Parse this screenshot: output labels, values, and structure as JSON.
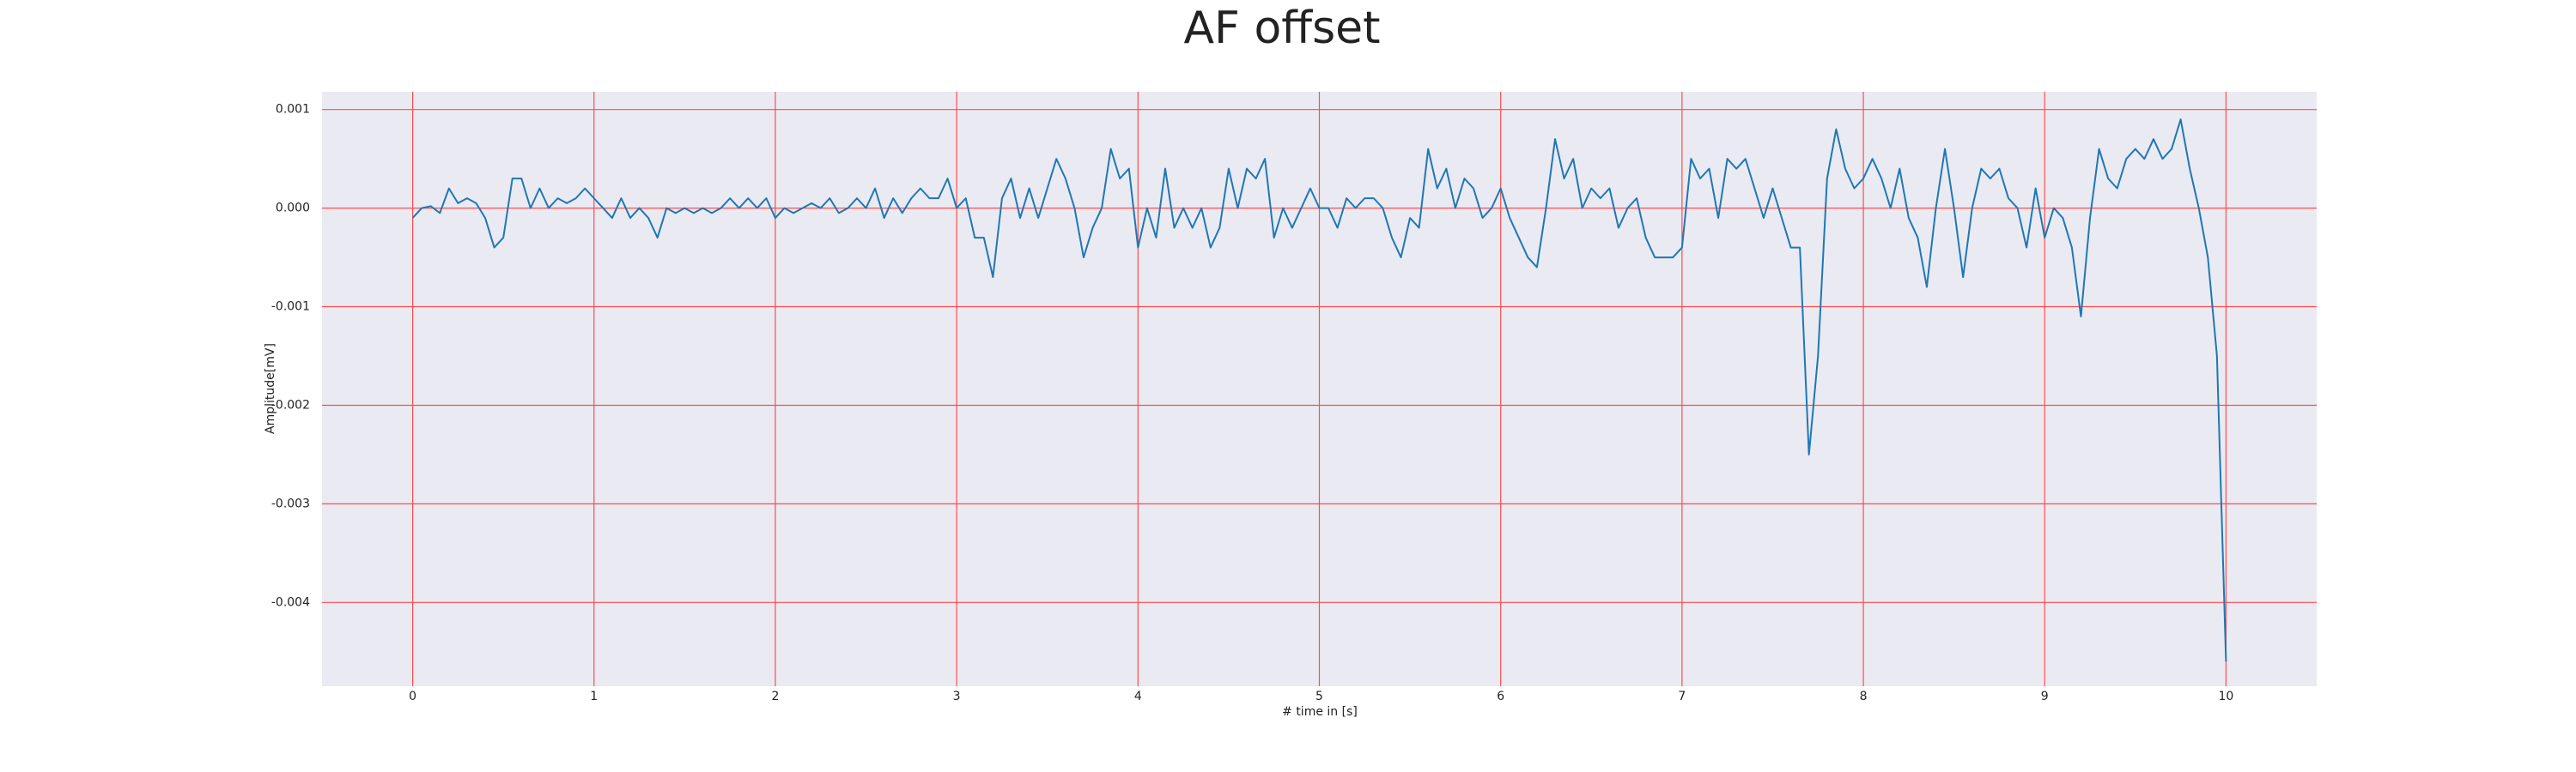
{
  "chart_data": {
    "type": "line",
    "title": "AF offset",
    "xlabel": "# time in [s]",
    "ylabel": "Amplitude[mV]",
    "x": [
      0,
      0.05,
      0.1,
      0.15,
      0.2,
      0.25,
      0.3,
      0.35,
      0.4,
      0.45,
      0.5,
      0.55,
      0.6,
      0.65,
      0.7,
      0.75,
      0.8,
      0.85,
      0.9,
      0.95,
      1,
      1.05,
      1.1,
      1.15,
      1.2,
      1.25,
      1.3,
      1.35,
      1.4,
      1.45,
      1.5,
      1.55,
      1.6,
      1.65,
      1.7,
      1.75,
      1.8,
      1.85,
      1.9,
      1.95,
      2,
      2.05,
      2.1,
      2.15,
      2.2,
      2.25,
      2.3,
      2.35,
      2.4,
      2.45,
      2.5,
      2.55,
      2.6,
      2.65,
      2.7,
      2.75,
      2.8,
      2.85,
      2.9,
      2.95,
      3,
      3.05,
      3.1,
      3.15,
      3.2,
      3.25,
      3.3,
      3.35,
      3.4,
      3.45,
      3.5,
      3.55,
      3.6,
      3.65,
      3.7,
      3.75,
      3.8,
      3.85,
      3.9,
      3.95,
      4,
      4.05,
      4.1,
      4.15,
      4.2,
      4.25,
      4.3,
      4.35,
      4.4,
      4.45,
      4.5,
      4.55,
      4.6,
      4.65,
      4.7,
      4.75,
      4.8,
      4.85,
      4.9,
      4.95,
      5,
      5.05,
      5.1,
      5.15,
      5.2,
      5.25,
      5.3,
      5.35,
      5.4,
      5.45,
      5.5,
      5.55,
      5.6,
      5.65,
      5.7,
      5.75,
      5.8,
      5.85,
      5.9,
      5.95,
      6,
      6.05,
      6.1,
      6.15,
      6.2,
      6.25,
      6.3,
      6.35,
      6.4,
      6.45,
      6.5,
      6.55,
      6.6,
      6.65,
      6.7,
      6.75,
      6.8,
      6.85,
      6.9,
      6.95,
      7,
      7.05,
      7.1,
      7.15,
      7.2,
      7.25,
      7.3,
      7.35,
      7.4,
      7.45,
      7.5,
      7.55,
      7.6,
      7.65,
      7.7,
      7.75,
      7.8,
      7.85,
      7.9,
      7.95,
      8,
      8.05,
      8.1,
      8.15,
      8.2,
      8.25,
      8.3,
      8.35,
      8.4,
      8.45,
      8.5,
      8.55,
      8.6,
      8.65,
      8.7,
      8.75,
      8.8,
      8.85,
      8.9,
      8.95,
      9,
      9.05,
      9.1,
      9.15,
      9.2,
      9.25,
      9.3,
      9.35,
      9.4,
      9.45,
      9.5,
      9.55,
      9.6,
      9.65,
      9.7,
      9.75,
      9.8,
      9.85,
      9.9,
      9.95,
      10
    ],
    "series": [
      {
        "color": "#1f77b4",
        "values": [
          -0.0001,
          0,
          2e-05,
          -5e-05,
          0.0002,
          5e-05,
          0.0001,
          5e-05,
          -0.0001,
          -0.0004,
          -0.0003,
          0.0003,
          0.0003,
          0,
          0.0002,
          0,
          0.0001,
          5e-05,
          0.0001,
          0.0002,
          0.0001,
          0,
          -0.0001,
          0.0001,
          -0.0001,
          0,
          -0.0001,
          -0.0003,
          0,
          -5e-05,
          0,
          -5e-05,
          0,
          -5e-05,
          0,
          0.0001,
          0,
          0.0001,
          0,
          0.0001,
          -0.0001,
          0,
          -5e-05,
          0,
          5e-05,
          0,
          0.0001,
          -5e-05,
          0,
          0.0001,
          0,
          0.0002,
          -0.0001,
          0.0001,
          -5e-05,
          0.0001,
          0.0002,
          0.0001,
          0.0001,
          0.0003,
          0,
          0.0001,
          -0.0003,
          -0.0003,
          -0.0007,
          0.0001,
          0.0003,
          -0.0001,
          0.0002,
          -0.0001,
          0.0002,
          0.0005,
          0.0003,
          0,
          -0.0005,
          -0.0002,
          0,
          0.0006,
          0.0003,
          0.0004,
          -0.0004,
          0,
          -0.0003,
          0.0004,
          -0.0002,
          0,
          -0.0002,
          0,
          -0.0004,
          -0.0002,
          0.0004,
          0,
          0.0004,
          0.0003,
          0.0005,
          -0.0003,
          0,
          -0.0002,
          0,
          0.0002,
          0,
          0,
          -0.0002,
          0.0001,
          0,
          0.0001,
          0.0001,
          0,
          -0.0003,
          -0.0005,
          -0.0001,
          -0.0002,
          0.0006,
          0.0002,
          0.0004,
          0,
          0.0003,
          0.0002,
          -0.0001,
          0,
          0.0002,
          -0.0001,
          -0.0003,
          -0.0005,
          -0.0006,
          0,
          0.0007,
          0.0003,
          0.0005,
          0,
          0.0002,
          0.0001,
          0.0002,
          -0.0002,
          0,
          0.0001,
          -0.0003,
          -0.0005,
          -0.0005,
          -0.0005,
          -0.0004,
          0.0005,
          0.0003,
          0.0004,
          -0.0001,
          0.0005,
          0.0004,
          0.0005,
          0.0002,
          -0.0001,
          0.0002,
          -0.0001,
          -0.0004,
          -0.0004,
          -0.0025,
          -0.0015,
          0.0003,
          0.0008,
          0.0004,
          0.0002,
          0.0003,
          0.0005,
          0.0003,
          0,
          0.0004,
          -0.0001,
          -0.0003,
          -0.0008,
          0,
          0.0006,
          0,
          -0.0007,
          0,
          0.0004,
          0.0003,
          0.0004,
          0.0001,
          0,
          -0.0004,
          0.0002,
          -0.0003,
          0,
          -0.0001,
          -0.0004,
          -0.0011,
          -0.0001,
          0.0006,
          0.0003,
          0.0002,
          0.0005,
          0.0006,
          0.0005,
          0.0007,
          0.0005,
          0.0006,
          0.0009,
          0.0004,
          0,
          -0.0005,
          -0.0015,
          -0.0046
        ]
      }
    ],
    "xlim": [
      -0.5,
      10.5
    ],
    "ylim": [
      -0.00485,
      0.00118
    ],
    "xticks": [
      0,
      1,
      2,
      3,
      4,
      5,
      6,
      7,
      8,
      9,
      10
    ],
    "yticks": [
      0.001,
      {
        "value": 0,
        "label": "0.000"
      },
      -0.001,
      -0.002,
      -0.003,
      -0.004
    ],
    "grid": true
  }
}
